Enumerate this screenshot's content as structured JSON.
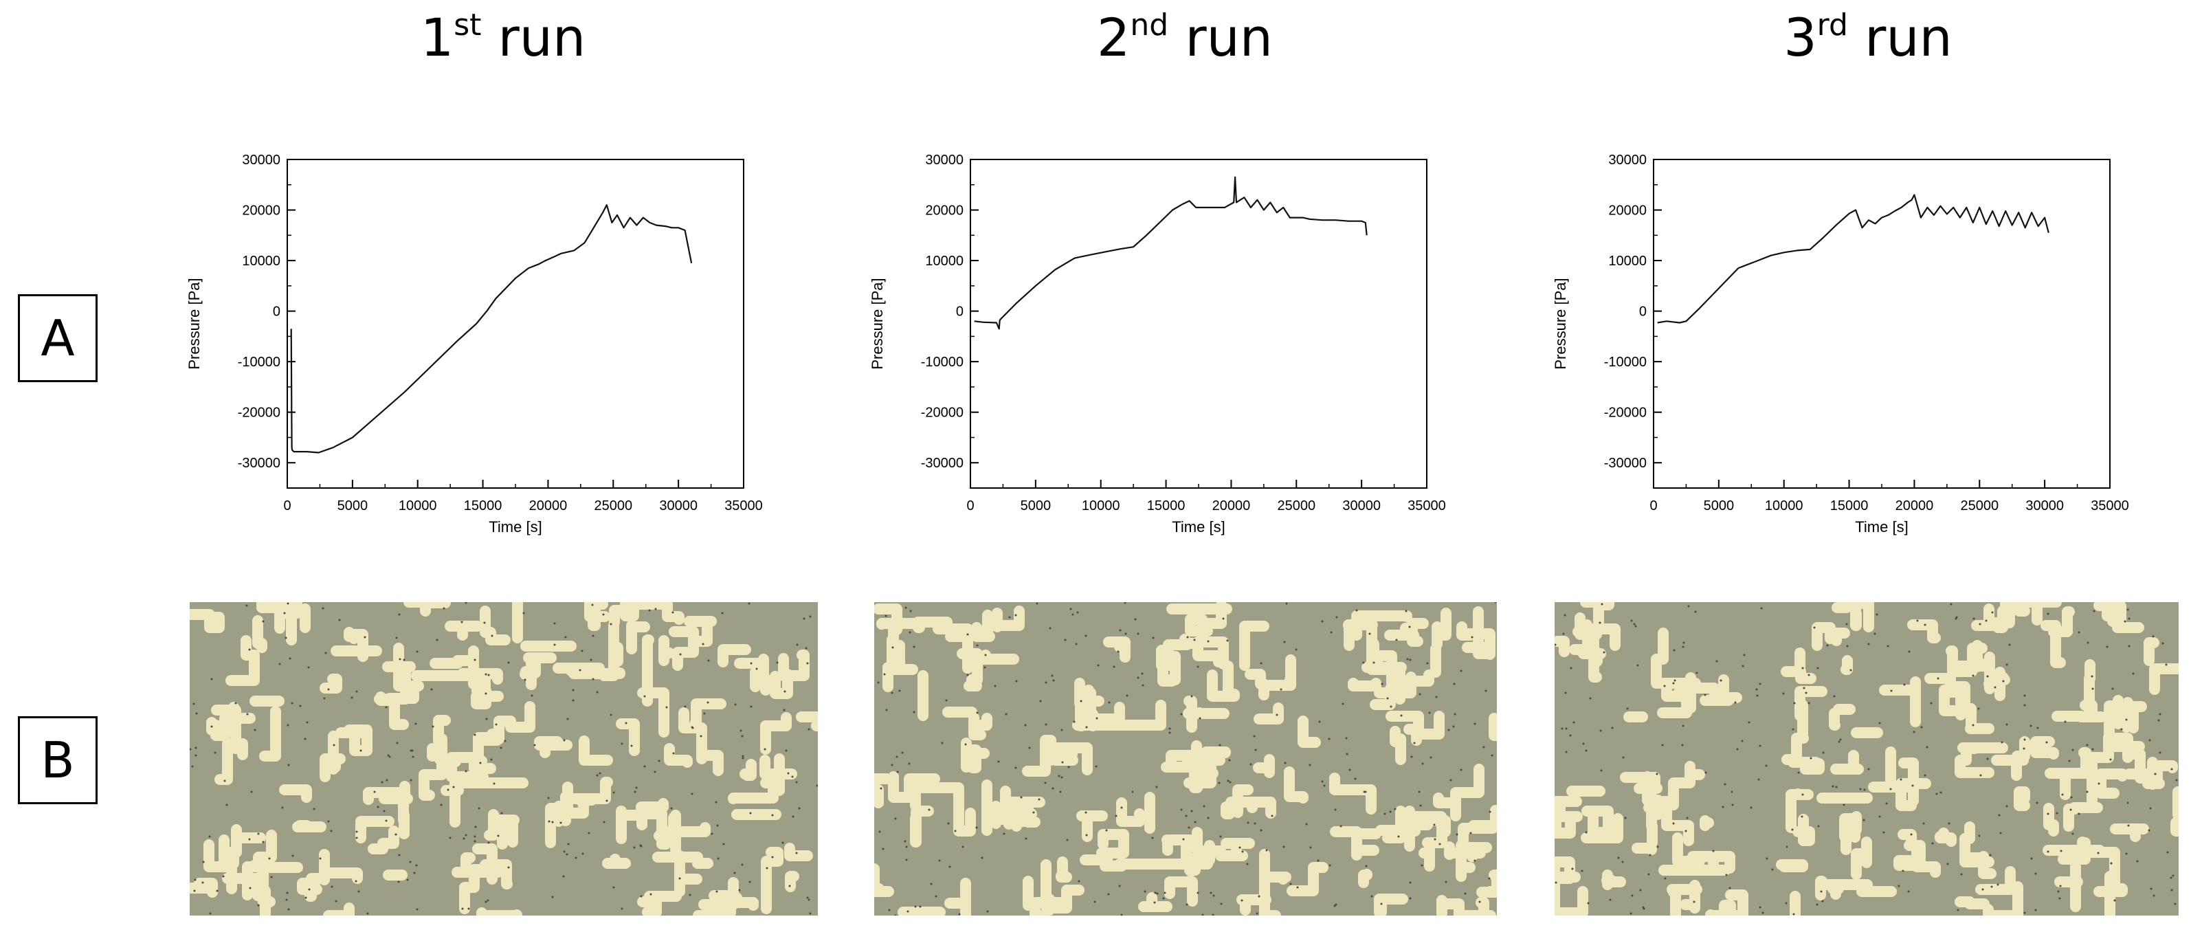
{
  "columns": [
    {
      "title_main": "1",
      "title_sup": "st",
      "title_rest": " run"
    },
    {
      "title_main": "2",
      "title_sup": "nd",
      "title_rest": " run"
    },
    {
      "title_main": "3",
      "title_sup": "rd",
      "title_rest": " run"
    }
  ],
  "row_labels": {
    "a": "A",
    "b": "B"
  },
  "colors": {
    "line": "#111111",
    "micro_bg": "#9c9e86",
    "micro_fg": "#efe8bf"
  },
  "chart_data": [
    {
      "type": "line",
      "xlabel": "Time [s]",
      "ylabel": "Pressure [Pa]",
      "xlim": [
        0,
        35000
      ],
      "ylim": [
        -35000,
        30000
      ],
      "xticks": [
        0,
        5000,
        10000,
        15000,
        20000,
        25000,
        30000,
        35000
      ],
      "yticks": [
        -30000,
        -20000,
        -10000,
        0,
        10000,
        20000,
        30000
      ],
      "grid": false,
      "series": [
        {
          "x": [
            300,
            350,
            380,
            500,
            1500,
            2400,
            3500,
            5000,
            7000,
            9000,
            11000,
            13000,
            14500,
            15300,
            16000,
            17500,
            18500,
            19300,
            19800,
            20500,
            21000,
            22000,
            22800,
            23500,
            24200,
            24500,
            24900,
            25300,
            25800,
            26300,
            26800,
            27300,
            27800,
            28300,
            29000,
            29500,
            30000,
            30500,
            31000
          ],
          "y": [
            -3500,
            -27000,
            -27500,
            -27800,
            -27800,
            -28000,
            -27000,
            -25000,
            -20500,
            -16000,
            -11000,
            -6000,
            -2500,
            0,
            2500,
            6500,
            8500,
            9300,
            10000,
            10800,
            11400,
            12000,
            13500,
            16500,
            19500,
            21000,
            17500,
            19000,
            16500,
            18500,
            17000,
            18500,
            17500,
            17000,
            16800,
            16500,
            16500,
            16000,
            9500
          ]
        }
      ]
    },
    {
      "type": "line",
      "xlabel": "Time [s]",
      "ylabel": "Pressure [Pa]",
      "xlim": [
        0,
        35000
      ],
      "ylim": [
        -35000,
        30000
      ],
      "xticks": [
        0,
        5000,
        10000,
        15000,
        20000,
        25000,
        30000,
        35000
      ],
      "yticks": [
        -30000,
        -20000,
        -10000,
        0,
        10000,
        20000,
        30000
      ],
      "grid": false,
      "series": [
        {
          "x": [
            300,
            1000,
            2000,
            2200,
            2250,
            2350,
            3500,
            5000,
            6500,
            8000,
            9300,
            10500,
            11500,
            12500,
            13500,
            14500,
            15500,
            16300,
            16800,
            17300,
            17800,
            18500,
            19500,
            20200,
            20300,
            20400,
            21000,
            21500,
            22000,
            22500,
            23000,
            23500,
            24000,
            24500,
            25000,
            25500,
            26000,
            27000,
            28000,
            29000,
            30000,
            30300,
            30400
          ],
          "y": [
            -2000,
            -2200,
            -2300,
            -3500,
            -1800,
            -1500,
            1500,
            5000,
            8200,
            10500,
            11200,
            11800,
            12300,
            12700,
            15000,
            17500,
            20000,
            21200,
            21800,
            20500,
            20500,
            20500,
            20500,
            21500,
            26500,
            21500,
            22500,
            20500,
            22000,
            20000,
            21500,
            19500,
            20500,
            18500,
            18500,
            18500,
            18200,
            18000,
            18000,
            17800,
            17800,
            17500,
            15000
          ]
        }
      ]
    },
    {
      "type": "line",
      "xlabel": "Time [s]",
      "ylabel": "Pressure [Pa]",
      "xlim": [
        0,
        35000
      ],
      "ylim": [
        -35000,
        30000
      ],
      "xticks": [
        0,
        5000,
        10000,
        15000,
        20000,
        25000,
        30000,
        35000
      ],
      "yticks": [
        -30000,
        -20000,
        -10000,
        0,
        10000,
        20000,
        30000
      ],
      "grid": false,
      "series": [
        {
          "x": [
            300,
            1000,
            2000,
            2500,
            3500,
            5000,
            6500,
            8000,
            9000,
            10000,
            11000,
            12000,
            13000,
            14000,
            15000,
            15500,
            16000,
            16500,
            17000,
            17500,
            18000,
            18500,
            19000,
            19500,
            19800,
            20000,
            20500,
            21000,
            21500,
            22000,
            22500,
            23000,
            23500,
            24000,
            24500,
            25000,
            25500,
            26000,
            26500,
            27000,
            27500,
            28000,
            28500,
            29000,
            29500,
            30000,
            30300
          ],
          "y": [
            -2300,
            -2000,
            -2300,
            -2000,
            500,
            4500,
            8500,
            10000,
            11000,
            11600,
            12000,
            12200,
            14500,
            17000,
            19300,
            20000,
            16500,
            18000,
            17300,
            18500,
            19000,
            19800,
            20500,
            21500,
            22000,
            23000,
            18500,
            20500,
            19000,
            20800,
            19200,
            20500,
            18500,
            20500,
            17500,
            20500,
            17200,
            19800,
            16800,
            19800,
            17000,
            19500,
            16500,
            19500,
            16800,
            18500,
            15500
          ]
        }
      ]
    }
  ]
}
